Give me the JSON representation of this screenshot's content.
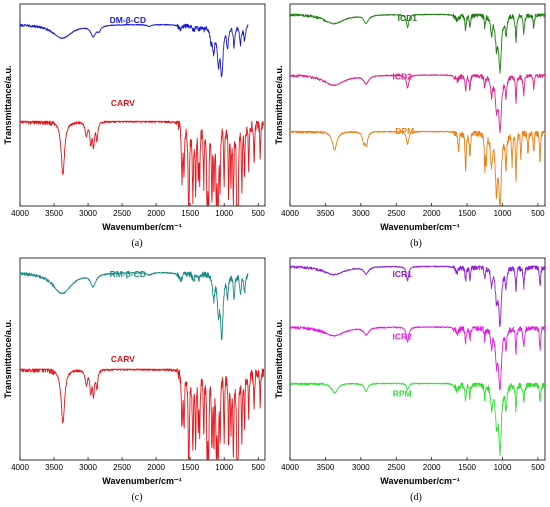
{
  "colors": {
    "blue": "#1a1ad6",
    "red": "#e8141a",
    "green": "#1e7d12",
    "magenta": "#e0208a",
    "orange": "#f07c12",
    "teal": "#1d8a86",
    "purple": "#8f1fd8",
    "pink": "#e21ee4",
    "lime": "#2fe02f"
  },
  "chart_data": [
    {
      "type": "line",
      "panel_label": "(a)",
      "xlabel": "Wavenumber/cm⁻¹",
      "ylabel": "Transmittance/a.u.",
      "xlim": [
        4000,
        400
      ],
      "xticks": [
        4000,
        3500,
        3000,
        2500,
        2000,
        1500,
        1000,
        500
      ],
      "series": [
        {
          "name": "DM-β-CD",
          "color_key": "blue",
          "x_range": [
            4000,
            650
          ],
          "offset": 0.9,
          "scale": 0.23,
          "peaks": [
            [
              3380,
              0.3,
              170
            ],
            [
              2925,
              0.22,
              45
            ],
            [
              2840,
              0.1,
              30
            ],
            [
              2100,
              0.04,
              40
            ],
            [
              1640,
              0.1,
              35
            ],
            [
              1450,
              0.12,
              25
            ],
            [
              1370,
              0.08,
              20
            ],
            [
              1300,
              0.08,
              20
            ],
            [
              1195,
              0.3,
              18
            ],
            [
              1155,
              0.5,
              18
            ],
            [
              1085,
              0.72,
              22
            ],
            [
              1035,
              1.0,
              22
            ],
            [
              950,
              0.45,
              16
            ],
            [
              855,
              0.45,
              14
            ],
            [
              760,
              0.4,
              14
            ],
            [
              700,
              0.35,
              14
            ]
          ]
        },
        {
          "name": "CARV",
          "color_key": "red",
          "x_range": [
            4000,
            420
          ],
          "offset": 0.42,
          "scale": 0.58,
          "peaks": [
            [
              3370,
              0.45,
              30
            ],
            [
              3025,
              0.12,
              20
            ],
            [
              2960,
              0.18,
              15
            ],
            [
              2920,
              0.2,
              15
            ],
            [
              2870,
              0.15,
              15
            ],
            [
              1620,
              0.45,
              10
            ],
            [
              1590,
              0.4,
              10
            ],
            [
              1520,
              0.85,
              10
            ],
            [
              1460,
              0.6,
              10
            ],
            [
              1420,
              0.55,
              8
            ],
            [
              1380,
              0.4,
              8
            ],
            [
              1360,
              0.45,
              8
            ],
            [
              1300,
              0.5,
              8
            ],
            [
              1250,
              0.75,
              8
            ],
            [
              1230,
              0.8,
              8
            ],
            [
              1180,
              0.6,
              8
            ],
            [
              1150,
              0.55,
              8
            ],
            [
              1115,
              0.65,
              8
            ],
            [
              1090,
              0.95,
              8
            ],
            [
              1060,
              0.5,
              8
            ],
            [
              1000,
              0.55,
              8
            ],
            [
              935,
              0.6,
              8
            ],
            [
              900,
              0.45,
              8
            ],
            [
              865,
              0.7,
              8
            ],
            [
              810,
              0.9,
              8
            ],
            [
              800,
              1.0,
              8
            ],
            [
              740,
              0.55,
              8
            ],
            [
              700,
              0.45,
              8
            ],
            [
              640,
              0.4,
              8
            ],
            [
              560,
              0.35,
              8
            ],
            [
              470,
              0.3,
              8
            ]
          ]
        }
      ]
    },
    {
      "type": "line",
      "panel_label": "(b)",
      "xlabel": "Wavenumber/cm⁻¹",
      "ylabel": "Transmittance/a.u.",
      "xlim": [
        4000,
        400
      ],
      "xticks": [
        4000,
        3500,
        3000,
        2500,
        2000,
        1500,
        1000,
        500
      ],
      "series": [
        {
          "name": "ICD1",
          "color_key": "green",
          "x_range": [
            4000,
            400
          ],
          "offset": 0.95,
          "scale": 0.26,
          "peaks": [
            [
              3380,
              0.18,
              180
            ],
            [
              2925,
              0.15,
              40
            ],
            [
              2340,
              0.25,
              20
            ],
            [
              1640,
              0.1,
              30
            ],
            [
              1520,
              0.3,
              10
            ],
            [
              1460,
              0.25,
              10
            ],
            [
              1250,
              0.25,
              8
            ],
            [
              1155,
              0.35,
              16
            ],
            [
              1085,
              0.55,
              20
            ],
            [
              1035,
              1.0,
              22
            ],
            [
              950,
              0.35,
              14
            ],
            [
              810,
              0.5,
              10
            ],
            [
              700,
              0.35,
              12
            ],
            [
              560,
              0.25,
              10
            ]
          ]
        },
        {
          "name": "ICD2",
          "color_key": "magenta",
          "x_range": [
            4000,
            400
          ],
          "offset": 0.65,
          "scale": 0.26,
          "peaks": [
            [
              3380,
              0.2,
              180
            ],
            [
              2925,
              0.15,
              40
            ],
            [
              2340,
              0.25,
              20
            ],
            [
              1640,
              0.1,
              30
            ],
            [
              1520,
              0.3,
              10
            ],
            [
              1460,
              0.25,
              10
            ],
            [
              1250,
              0.25,
              8
            ],
            [
              1155,
              0.35,
              16
            ],
            [
              1085,
              0.55,
              20
            ],
            [
              1035,
              1.0,
              22
            ],
            [
              950,
              0.35,
              14
            ],
            [
              810,
              0.5,
              10
            ],
            [
              700,
              0.35,
              12
            ],
            [
              560,
              0.25,
              10
            ]
          ]
        },
        {
          "name": "DPM",
          "color_key": "orange",
          "x_range": [
            4000,
            400
          ],
          "offset": 0.37,
          "scale": 0.36,
          "peaks": [
            [
              3370,
              0.25,
              40
            ],
            [
              2960,
              0.15,
              20
            ],
            [
              2920,
              0.18,
              20
            ],
            [
              2340,
              0.18,
              20
            ],
            [
              1620,
              0.25,
              10
            ],
            [
              1520,
              0.5,
              10
            ],
            [
              1460,
              0.35,
              10
            ],
            [
              1250,
              0.45,
              8
            ],
            [
              1230,
              0.4,
              8
            ],
            [
              1155,
              0.45,
              16
            ],
            [
              1085,
              0.75,
              18
            ],
            [
              1035,
              1.0,
              20
            ],
            [
              950,
              0.45,
              12
            ],
            [
              865,
              0.45,
              8
            ],
            [
              810,
              0.65,
              8
            ],
            [
              740,
              0.35,
              8
            ],
            [
              640,
              0.3,
              8
            ],
            [
              560,
              0.3,
              8
            ],
            [
              470,
              0.45,
              8
            ]
          ]
        }
      ]
    },
    {
      "type": "line",
      "panel_label": "(c)",
      "xlabel": "Wavenumber/cm⁻¹",
      "ylabel": "Transmittance/a.u.",
      "xlim": [
        4000,
        400
      ],
      "xticks": [
        4000,
        3500,
        3000,
        2500,
        2000,
        1500,
        1000,
        500
      ],
      "series": [
        {
          "name": "RM-β-CD",
          "color_key": "teal",
          "x_range": [
            4000,
            650
          ],
          "offset": 0.93,
          "scale": 0.3,
          "peaks": [
            [
              3380,
              0.35,
              170
            ],
            [
              2925,
              0.2,
              45
            ],
            [
              2100,
              0.04,
              40
            ],
            [
              1640,
              0.12,
              35
            ],
            [
              1450,
              0.1,
              25
            ],
            [
              1370,
              0.1,
              20
            ],
            [
              1155,
              0.4,
              18
            ],
            [
              1085,
              0.55,
              20
            ],
            [
              1035,
              1.0,
              22
            ],
            [
              950,
              0.35,
              14
            ],
            [
              855,
              0.4,
              14
            ],
            [
              760,
              0.35,
              14
            ],
            [
              700,
              0.3,
              14
            ]
          ]
        },
        {
          "name": "CARV",
          "color_key": "red",
          "x_range": [
            4000,
            420
          ],
          "offset": 0.45,
          "scale": 0.6,
          "peaks": [
            [
              3370,
              0.45,
              30
            ],
            [
              3025,
              0.12,
              20
            ],
            [
              2960,
              0.18,
              15
            ],
            [
              2920,
              0.2,
              15
            ],
            [
              2870,
              0.15,
              15
            ],
            [
              1620,
              0.45,
              10
            ],
            [
              1590,
              0.4,
              10
            ],
            [
              1520,
              0.85,
              10
            ],
            [
              1460,
              0.6,
              10
            ],
            [
              1420,
              0.55,
              8
            ],
            [
              1380,
              0.4,
              8
            ],
            [
              1360,
              0.45,
              8
            ],
            [
              1300,
              0.5,
              8
            ],
            [
              1250,
              0.75,
              8
            ],
            [
              1230,
              0.8,
              8
            ],
            [
              1180,
              0.6,
              8
            ],
            [
              1150,
              0.55,
              8
            ],
            [
              1115,
              0.65,
              8
            ],
            [
              1090,
              0.95,
              8
            ],
            [
              1060,
              0.5,
              8
            ],
            [
              1000,
              0.55,
              8
            ],
            [
              935,
              0.6,
              8
            ],
            [
              900,
              0.45,
              8
            ],
            [
              865,
              0.7,
              8
            ],
            [
              810,
              0.9,
              8
            ],
            [
              800,
              1.0,
              8
            ],
            [
              740,
              0.55,
              8
            ],
            [
              700,
              0.45,
              8
            ],
            [
              640,
              0.4,
              8
            ],
            [
              560,
              0.35,
              8
            ],
            [
              470,
              0.3,
              8
            ]
          ]
        }
      ]
    },
    {
      "type": "line",
      "panel_label": "(d)",
      "xlabel": "Wavenumber/cm⁻¹",
      "ylabel": "Transmittance/a.u.",
      "xlim": [
        4000,
        400
      ],
      "xticks": [
        4000,
        3500,
        3000,
        2500,
        2000,
        1500,
        1000,
        500
      ],
      "series": [
        {
          "name": "ICR1",
          "color_key": "purple",
          "x_range": [
            4000,
            400
          ],
          "offset": 0.96,
          "scale": 0.28,
          "peaks": [
            [
              3380,
              0.15,
              180
            ],
            [
              2925,
              0.12,
              40
            ],
            [
              2340,
              0.25,
              20
            ],
            [
              1640,
              0.1,
              30
            ],
            [
              1520,
              0.25,
              10
            ],
            [
              1460,
              0.2,
              10
            ],
            [
              1250,
              0.2,
              8
            ],
            [
              1155,
              0.3,
              16
            ],
            [
              1085,
              0.5,
              20
            ],
            [
              1035,
              1.0,
              22
            ],
            [
              950,
              0.3,
              14
            ],
            [
              810,
              0.4,
              10
            ],
            [
              700,
              0.35,
              12
            ],
            [
              470,
              0.35,
              10
            ]
          ]
        },
        {
          "name": "ICR2",
          "color_key": "pink",
          "x_range": [
            4000,
            400
          ],
          "offset": 0.66,
          "scale": 0.3,
          "peaks": [
            [
              3380,
              0.15,
              180
            ],
            [
              2925,
              0.12,
              40
            ],
            [
              2340,
              0.25,
              20
            ],
            [
              1640,
              0.1,
              30
            ],
            [
              1520,
              0.25,
              10
            ],
            [
              1460,
              0.2,
              10
            ],
            [
              1250,
              0.2,
              8
            ],
            [
              1155,
              0.3,
              16
            ],
            [
              1085,
              0.5,
              20
            ],
            [
              1035,
              1.0,
              22
            ],
            [
              950,
              0.3,
              14
            ],
            [
              810,
              0.4,
              10
            ],
            [
              700,
              0.35,
              12
            ],
            [
              470,
              0.35,
              10
            ]
          ]
        },
        {
          "name": "RPM",
          "color_key": "lime",
          "x_range": [
            4000,
            400
          ],
          "offset": 0.38,
          "scale": 0.32,
          "peaks": [
            [
              3370,
              0.15,
              50
            ],
            [
              2925,
              0.12,
              30
            ],
            [
              2340,
              0.1,
              20
            ],
            [
              1640,
              0.1,
              30
            ],
            [
              1520,
              0.25,
              10
            ],
            [
              1460,
              0.2,
              10
            ],
            [
              1250,
              0.25,
              8
            ],
            [
              1155,
              0.35,
              16
            ],
            [
              1085,
              0.55,
              20
            ],
            [
              1035,
              1.0,
              22
            ],
            [
              950,
              0.35,
              14
            ],
            [
              810,
              0.4,
              10
            ],
            [
              700,
              0.3,
              12
            ],
            [
              470,
              0.3,
              10
            ]
          ]
        }
      ]
    }
  ]
}
